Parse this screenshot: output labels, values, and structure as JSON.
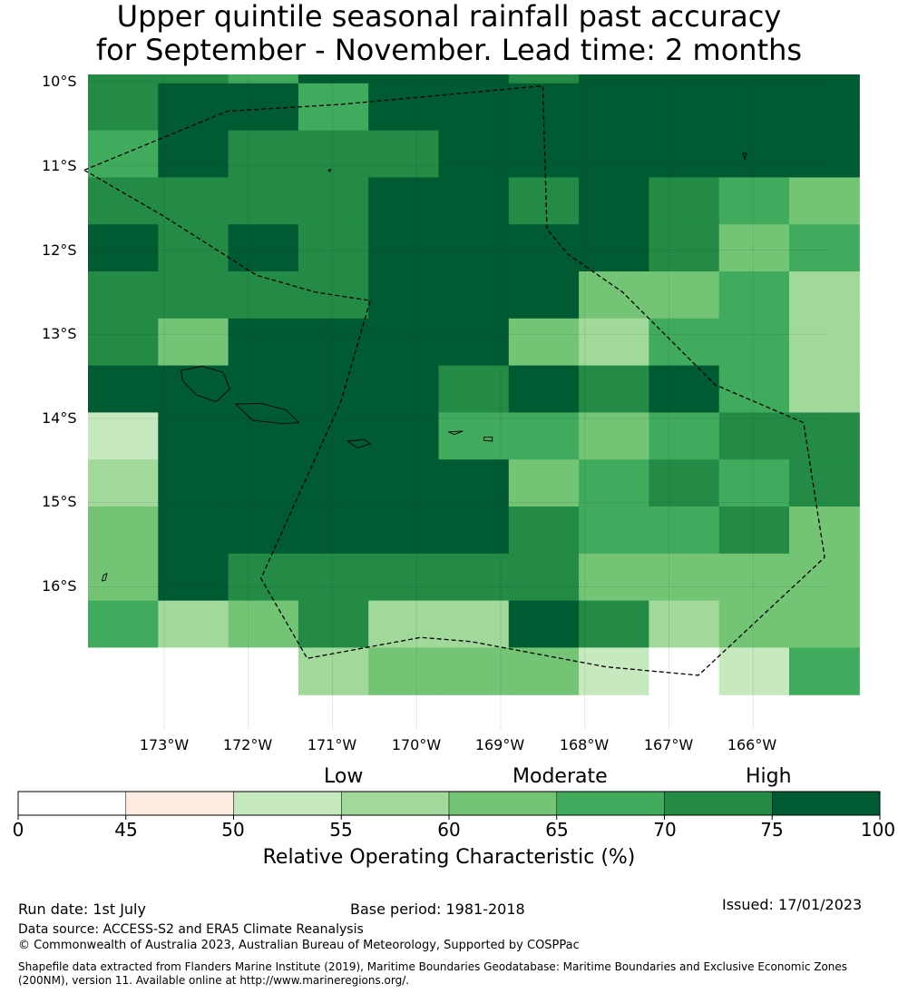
{
  "title": {
    "line1": "Upper quintile seasonal rainfall past accuracy",
    "line2": "for September - November. Lead time: 2 months"
  },
  "map": {
    "lat_labels": [
      "10°S",
      "11°S",
      "12°S",
      "13°S",
      "14°S",
      "15°S",
      "16°S"
    ],
    "lon_labels": [
      "173°W",
      "172°W",
      "171°W",
      "170°W",
      "169°W",
      "168°W",
      "167°W",
      "166°W"
    ],
    "grid_rows": [
      [
        6,
        6,
        5,
        7,
        7,
        7,
        6,
        7,
        7,
        7,
        7
      ],
      [
        6,
        7,
        7,
        5,
        7,
        7,
        7,
        7,
        7,
        7,
        7
      ],
      [
        5,
        7,
        6,
        6,
        6,
        7,
        7,
        7,
        7,
        7,
        7
      ],
      [
        6,
        6,
        6,
        6,
        7,
        7,
        6,
        7,
        6,
        5,
        4
      ],
      [
        7,
        6,
        7,
        6,
        7,
        7,
        7,
        7,
        6,
        4,
        5
      ],
      [
        6,
        6,
        6,
        6,
        7,
        7,
        7,
        4,
        4,
        5,
        3
      ],
      [
        6,
        4,
        7,
        7,
        7,
        7,
        4,
        3,
        5,
        5,
        3
      ],
      [
        7,
        7,
        7,
        7,
        7,
        6,
        7,
        6,
        7,
        5,
        3
      ],
      [
        2,
        7,
        7,
        7,
        7,
        5,
        5,
        4,
        5,
        6,
        6
      ],
      [
        3,
        7,
        7,
        7,
        7,
        7,
        4,
        5,
        6,
        5,
        6
      ],
      [
        4,
        7,
        7,
        7,
        7,
        7,
        6,
        5,
        5,
        6,
        4
      ],
      [
        4,
        7,
        6,
        6,
        6,
        6,
        6,
        4,
        4,
        4,
        4
      ],
      [
        5,
        3,
        4,
        6,
        3,
        3,
        7,
        6,
        3,
        4,
        4
      ],
      [
        0,
        0,
        0,
        3,
        4,
        4,
        4,
        2,
        0,
        2,
        5
      ]
    ],
    "colors": [
      "#ffffff",
      "#ffebe1",
      "#c7e9c0",
      "#a1d99b",
      "#74c476",
      "#41ab5d",
      "#238b45",
      "#005a32"
    ],
    "eez_boundary": [
      [
        -173.95,
        -11.05
      ],
      [
        -172.25,
        -10.35
      ],
      [
        -170.9,
        -10.27
      ],
      [
        -168.5,
        -10.05
      ],
      [
        -168.45,
        -11.75
      ],
      [
        -168.2,
        -12.05
      ],
      [
        -167.55,
        -12.5
      ],
      [
        -166.45,
        -13.6
      ],
      [
        -165.4,
        -14.05
      ],
      [
        -165.15,
        -15.65
      ],
      [
        -166.65,
        -17.05
      ],
      [
        -167.75,
        -16.95
      ],
      [
        -169.35,
        -16.65
      ],
      [
        -169.95,
        -16.6
      ],
      [
        -171.3,
        -16.85
      ],
      [
        -171.85,
        -15.9
      ],
      [
        -170.9,
        -13.8
      ],
      [
        -170.55,
        -12.6
      ],
      [
        -171.2,
        -12.5
      ],
      [
        -171.9,
        -12.3
      ],
      [
        -173.0,
        -11.6
      ],
      [
        -173.95,
        -11.05
      ]
    ],
    "islands": [
      [
        [
          -172.8,
          -13.43
        ],
        [
          -172.55,
          -13.38
        ],
        [
          -172.3,
          -13.45
        ],
        [
          -172.22,
          -13.65
        ],
        [
          -172.38,
          -13.8
        ],
        [
          -172.62,
          -13.72
        ],
        [
          -172.78,
          -13.55
        ],
        [
          -172.8,
          -13.43
        ]
      ],
      [
        [
          -172.15,
          -13.83
        ],
        [
          -171.85,
          -13.82
        ],
        [
          -171.55,
          -13.9
        ],
        [
          -171.4,
          -14.05
        ],
        [
          -171.6,
          -14.06
        ],
        [
          -171.95,
          -14.02
        ],
        [
          -172.15,
          -13.83
        ]
      ],
      [
        [
          -170.82,
          -14.27
        ],
        [
          -170.62,
          -14.25
        ],
        [
          -170.55,
          -14.3
        ],
        [
          -170.7,
          -14.35
        ],
        [
          -170.82,
          -14.27
        ]
      ],
      [
        [
          -169.62,
          -14.16
        ],
        [
          -169.45,
          -14.15
        ],
        [
          -169.55,
          -14.19
        ],
        [
          -169.62,
          -14.16
        ]
      ],
      [
        [
          -169.2,
          -14.22
        ],
        [
          -169.1,
          -14.22
        ],
        [
          -169.1,
          -14.27
        ],
        [
          -169.2,
          -14.26
        ],
        [
          -169.2,
          -14.22
        ]
      ],
      [
        [
          -171.05,
          -11.05
        ],
        [
          -171.02,
          -11.04
        ],
        [
          -171.03,
          -11.07
        ],
        [
          -171.05,
          -11.05
        ]
      ],
      [
        [
          -166.12,
          -10.85
        ],
        [
          -166.08,
          -10.85
        ],
        [
          -166.1,
          -10.93
        ],
        [
          -166.12,
          -10.85
        ]
      ],
      [
        [
          -173.72,
          -15.86
        ],
        [
          -173.68,
          -15.84
        ],
        [
          -173.7,
          -15.92
        ],
        [
          -173.74,
          -15.93
        ],
        [
          -173.72,
          -15.86
        ]
      ]
    ]
  },
  "legend": {
    "categories": [
      "Low",
      "Moderate",
      "High"
    ],
    "ticks": [
      "0",
      "45",
      "50",
      "55",
      "60",
      "65",
      "70",
      "75",
      "100"
    ],
    "colors": [
      "#ffffff",
      "#ffebe1",
      "#c7e9c0",
      "#a1d99b",
      "#74c476",
      "#41ab5d",
      "#238b45",
      "#005a32"
    ],
    "title": "Relative Operating Characteristic (%)"
  },
  "footer": {
    "run_date": "Run date: 1st July",
    "base_period": "Base period: 1981-2018",
    "issued": "Issued: 17/01/2023",
    "data_source": "Data source: ACCESS-S2 and ERA5 Climate Reanalysis",
    "copyright": "© Commonwealth of Australia 2023, Australian Bureau of Meteorology, Supported by COSPPac",
    "shapefile_line1": "Shapefile data extracted from Flanders Marine Institute (2019), Maritime Boundaries Geodatabase: Maritime Boundaries and Exclusive Economic Zones",
    "shapefile_line2": "(200NM), version 11. Available online at http://www.marineregions.org/."
  }
}
